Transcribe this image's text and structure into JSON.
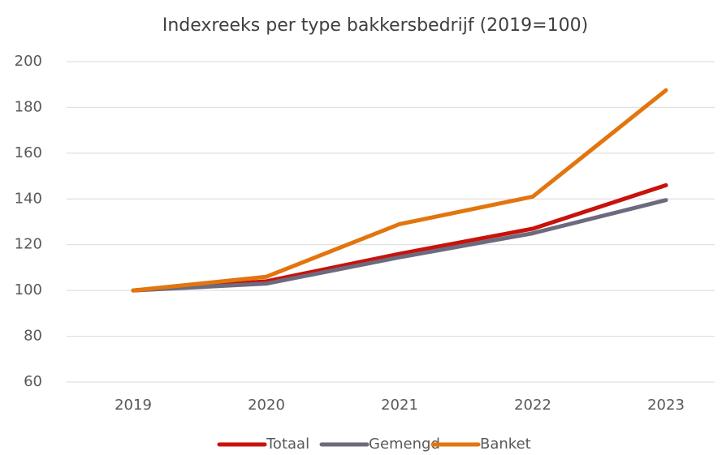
{
  "chart_data": {
    "type": "line",
    "title": "Indexreeks per type bakkersbedrijf (2019=100)",
    "categories": [
      "2019",
      "2020",
      "2021",
      "2022",
      "2023"
    ],
    "series": [
      {
        "name": "Totaal",
        "color": "#c8120c",
        "values": [
          100,
          104,
          116,
          127,
          146
        ]
      },
      {
        "name": "Gemengd",
        "color": "#6e6a7e",
        "values": [
          100,
          103,
          114.5,
          125,
          139.5
        ]
      },
      {
        "name": "Banket",
        "color": "#e2750e",
        "values": [
          100,
          106,
          129,
          141,
          187.5
        ]
      }
    ],
    "ylim": [
      60,
      200
    ],
    "yticks": [
      60,
      80,
      100,
      120,
      140,
      160,
      180,
      200
    ],
    "grid": true,
    "legend": "bottom"
  }
}
